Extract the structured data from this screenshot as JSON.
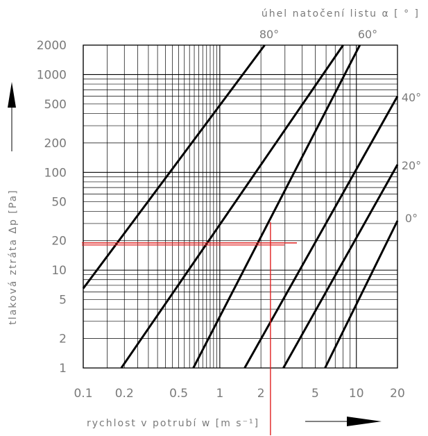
{
  "chart_data": {
    "type": "line",
    "title": "",
    "xlabel": "rychlost v potrubí w   [m s⁻¹]",
    "ylabel": "tlaková ztráta Δp   [Pa]",
    "top_label": "úhel natočení listu α  [ ° ]",
    "x_scale": "log",
    "y_scale": "log",
    "xlim": [
      0.1,
      20
    ],
    "ylim": [
      1,
      2000
    ],
    "x_ticks": [
      0.1,
      0.2,
      0.5,
      1,
      2,
      5,
      10,
      20
    ],
    "x_tick_labels": [
      "0.1",
      "0.2",
      "0.5",
      "1",
      "2",
      "5",
      "10",
      "20"
    ],
    "y_ticks": [
      1,
      2,
      5,
      10,
      20,
      50,
      100,
      200,
      500,
      1000,
      2000
    ],
    "y_tick_labels": [
      "1",
      "2",
      "5",
      "10",
      "20",
      "50",
      "100",
      "200",
      "500",
      "1000",
      "2000"
    ],
    "grid": true,
    "series": [
      {
        "name": "80°",
        "points": [
          [
            0.1,
            6.5
          ],
          [
            2.13,
            2000
          ]
        ]
      },
      {
        "name": "",
        "points": [
          [
            0.19,
            1
          ],
          [
            8.0,
            2000
          ]
        ]
      },
      {
        "name": "60°",
        "points": [
          [
            0.64,
            1
          ],
          [
            10.6,
            2000
          ]
        ]
      },
      {
        "name": "40°",
        "points": [
          [
            1.52,
            1
          ],
          [
            20,
            600
          ]
        ]
      },
      {
        "name": "20°",
        "points": [
          [
            2.92,
            1
          ],
          [
            20,
            120
          ]
        ]
      },
      {
        "name": "0°",
        "points": [
          [
            5.9,
            1
          ],
          [
            20,
            32
          ]
        ]
      }
    ],
    "marker": {
      "x": 2.35,
      "y": 19,
      "color": "#e02020"
    },
    "colors": {
      "grid": "#000000",
      "curve": "#000000",
      "text": "#7a7a7a",
      "marker": "#e02020"
    }
  }
}
